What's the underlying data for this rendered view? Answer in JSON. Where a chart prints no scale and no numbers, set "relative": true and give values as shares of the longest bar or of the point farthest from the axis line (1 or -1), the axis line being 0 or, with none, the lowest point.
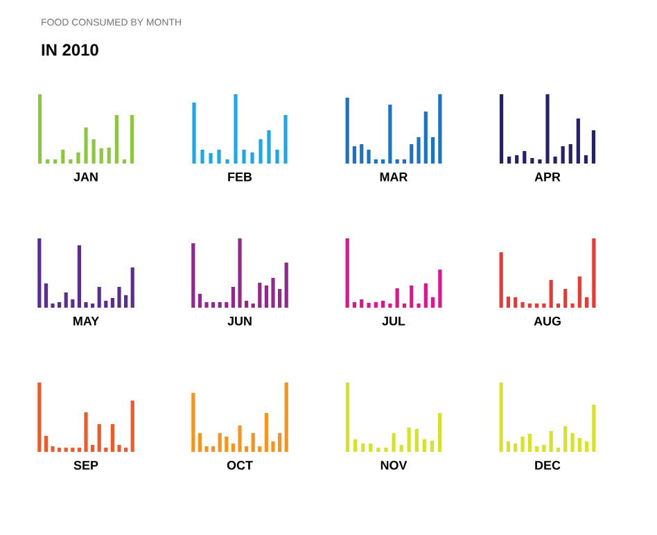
{
  "chart_data": [
    {
      "type": "bar",
      "title": "FOOD CONSUMED BY MONTH",
      "subtitle": "IN 2010",
      "xlabel": "JAN",
      "relative": true,
      "tick_labels": false,
      "color": "#8dc63f",
      "categories": [
        null,
        null,
        null,
        null,
        null,
        null,
        null,
        null,
        null,
        null,
        null,
        null,
        null
      ],
      "values": [
        1,
        0.06,
        0.06,
        0.2,
        0.06,
        0.16,
        0.52,
        0.35,
        0.22,
        0.23,
        0.7,
        0.06,
        0.7
      ]
    },
    {
      "type": "bar",
      "xlabel": "FEB",
      "relative": true,
      "tick_labels": false,
      "color": "#1ea6e6",
      "categories": [
        null,
        null,
        null,
        null,
        null,
        null,
        null,
        null,
        null,
        null,
        null,
        null
      ],
      "values": [
        0.88,
        0.2,
        0.15,
        0.2,
        0.06,
        1,
        0.2,
        0.16,
        0.35,
        0.48,
        0.2,
        0.7
      ]
    },
    {
      "type": "bar",
      "xlabel": "MAR",
      "relative": true,
      "tick_labels": false,
      "color": "#1a74c2",
      "categories": [
        null,
        null,
        null,
        null,
        null,
        null,
        null,
        null,
        null,
        null,
        null,
        null,
        null,
        null
      ],
      "values": [
        0.95,
        0.25,
        0.28,
        0.2,
        0.06,
        0.06,
        0.85,
        0.06,
        0.06,
        0.28,
        0.38,
        0.75,
        0.38,
        1
      ]
    },
    {
      "type": "bar",
      "xlabel": "APR",
      "relative": true,
      "tick_labels": false,
      "color": "#24226a",
      "categories": [
        null,
        null,
        null,
        null,
        null,
        null,
        null,
        null,
        null,
        null,
        null,
        null,
        null
      ],
      "values": [
        1,
        0.1,
        0.12,
        0.18,
        0.08,
        0.06,
        1,
        0.1,
        0.25,
        0.28,
        0.65,
        0.12,
        0.48
      ]
    },
    {
      "type": "bar",
      "xlabel": "MAY",
      "relative": true,
      "tick_labels": false,
      "color": "#5c2d91",
      "categories": [
        null,
        null,
        null,
        null,
        null,
        null,
        null,
        null,
        null,
        null,
        null,
        null,
        null,
        null,
        null
      ],
      "values": [
        1,
        0.35,
        0.06,
        0.08,
        0.22,
        0.12,
        0.9,
        0.08,
        0.06,
        0.3,
        0.1,
        0.14,
        0.3,
        0.18,
        0.58
      ]
    },
    {
      "type": "bar",
      "xlabel": "JUN",
      "relative": true,
      "tick_labels": false,
      "color": "#92278f",
      "categories": [
        null,
        null,
        null,
        null,
        null,
        null,
        null,
        null,
        null,
        null,
        null,
        null,
        null,
        null,
        null
      ],
      "values": [
        0.93,
        0.2,
        0.08,
        0.08,
        0.08,
        0.08,
        0.3,
        1,
        0.1,
        0.06,
        0.36,
        0.32,
        0.43,
        0.27,
        0.65
      ]
    },
    {
      "type": "bar",
      "xlabel": "JUL",
      "relative": true,
      "tick_labels": false,
      "color": "#e0148c",
      "categories": [
        null,
        null,
        null,
        null,
        null,
        null,
        null,
        null,
        null,
        null,
        null,
        null,
        null,
        null
      ],
      "values": [
        1,
        0.08,
        0.12,
        0.07,
        0.08,
        0.1,
        0.06,
        0.28,
        0.06,
        0.32,
        0.06,
        0.35,
        0.15,
        0.55
      ]
    },
    {
      "type": "bar",
      "xlabel": "AUG",
      "relative": true,
      "tick_labels": false,
      "color": "#e83a34",
      "categories": [
        null,
        null,
        null,
        null,
        null,
        null,
        null,
        null,
        null,
        null,
        null,
        null,
        null,
        null
      ],
      "values": [
        0.8,
        0.16,
        0.15,
        0.08,
        0.06,
        0.06,
        0.06,
        0.4,
        0.06,
        0.27,
        0.06,
        0.45,
        0.15,
        1
      ]
    },
    {
      "type": "bar",
      "xlabel": "SEP",
      "relative": true,
      "tick_labels": false,
      "color": "#ee5a2a",
      "categories": [
        null,
        null,
        null,
        null,
        null,
        null,
        null,
        null,
        null,
        null,
        null,
        null,
        null,
        null,
        null
      ],
      "values": [
        1,
        0.23,
        0.08,
        0.06,
        0.06,
        0.06,
        0.06,
        0.57,
        0.1,
        0.4,
        0.06,
        0.4,
        0.1,
        0.06,
        0.74
      ]
    },
    {
      "type": "bar",
      "xlabel": "OCT",
      "relative": true,
      "tick_labels": false,
      "color": "#f7941d",
      "categories": [
        null,
        null,
        null,
        null,
        null,
        null,
        null,
        null,
        null,
        null,
        null,
        null,
        null,
        null,
        null
      ],
      "values": [
        0.85,
        0.27,
        0.08,
        0.08,
        0.27,
        0.22,
        0.12,
        0.38,
        0.08,
        0.27,
        0.08,
        0.56,
        0.15,
        0.27,
        1
      ]
    },
    {
      "type": "bar",
      "xlabel": "NOV",
      "relative": true,
      "tick_labels": false,
      "color": "#d6e228",
      "categories": [
        null,
        null,
        null,
        null,
        null,
        null,
        null,
        null,
        null,
        null,
        null,
        null,
        null
      ],
      "values": [
        1,
        0.18,
        0.12,
        0.12,
        0.06,
        0.06,
        0.27,
        0.1,
        0.35,
        0.33,
        0.18,
        0.16,
        0.56
      ]
    },
    {
      "type": "bar",
      "xlabel": "DEC",
      "relative": true,
      "tick_labels": false,
      "color": "#d8e22a",
      "categories": [
        null,
        null,
        null,
        null,
        null,
        null,
        null,
        null,
        null,
        null,
        null,
        null,
        null,
        null
      ],
      "values": [
        1,
        0.15,
        0.12,
        0.22,
        0.26,
        0.08,
        0.1,
        0.3,
        0.06,
        0.37,
        0.27,
        0.2,
        0.15,
        0.68
      ]
    }
  ]
}
